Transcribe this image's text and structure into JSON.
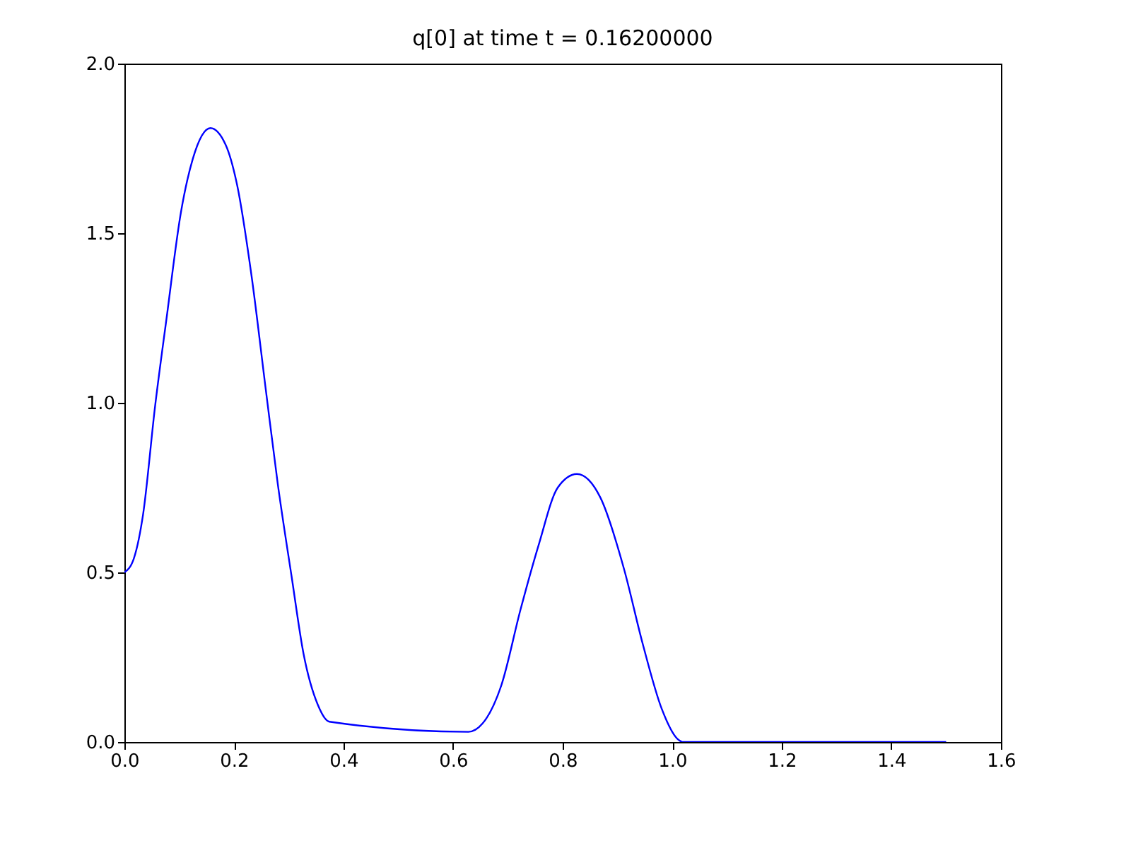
{
  "chart_data": {
    "type": "line",
    "title": "q[0] at time t =     0.16200000",
    "x": [
      0.0,
      0.017,
      0.034,
      0.056,
      0.077,
      0.103,
      0.125,
      0.157,
      0.185,
      0.206,
      0.232,
      0.258,
      0.28,
      0.305,
      0.327,
      0.353,
      0.374,
      0.628,
      0.654,
      0.688,
      0.723,
      0.756,
      0.791,
      0.826,
      0.869,
      0.912,
      0.946,
      0.981,
      1.011,
      1.02,
      1.5
    ],
    "series": [
      {
        "color": "#0000ff",
        "values": [
          0.5,
          0.54,
          0.67,
          0.99,
          1.25,
          1.56,
          1.72,
          1.81,
          1.76,
          1.64,
          1.375,
          1.04,
          0.76,
          0.49,
          0.26,
          0.11,
          0.06,
          0.03,
          0.055,
          0.167,
          0.39,
          0.58,
          0.75,
          0.79,
          0.72,
          0.51,
          0.29,
          0.097,
          0.007,
          0.0,
          0.0
        ]
      }
    ],
    "xlim": [
      0,
      1.6
    ],
    "ylim": [
      0,
      2.0
    ],
    "xticks": [
      {
        "value": 0,
        "label": "0.0"
      },
      0.2,
      0.4,
      0.6,
      0.8,
      {
        "value": 1,
        "label": "1.0"
      },
      1.2,
      1.4,
      1.6
    ],
    "yticks": [
      {
        "value": 0,
        "label": "0.0"
      },
      0.5,
      {
        "value": 1,
        "label": "1.0"
      },
      1.5,
      {
        "value": 2,
        "label": "2.0"
      }
    ],
    "grid": false,
    "marker": "none",
    "line_style": "solid"
  }
}
